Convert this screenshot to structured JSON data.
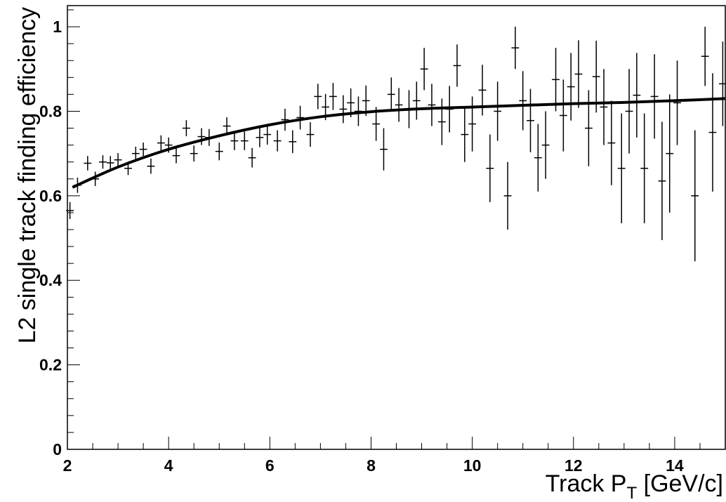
{
  "chart_data": {
    "type": "scatter",
    "title": "",
    "xlabel": "Track P",
    "xlabel_sub": "T",
    "xlabel_unit": " [GeV/c]",
    "ylabel": "L2 single track finding efficiency",
    "xlim": [
      2,
      15
    ],
    "ylim": [
      0,
      1.05
    ],
    "x_ticks": [
      2,
      4,
      6,
      8,
      10,
      12,
      14
    ],
    "x_tick_labels": [
      "2",
      "4",
      "6",
      "8",
      "10",
      "12",
      "14"
    ],
    "y_ticks": [
      0,
      0.2,
      0.4,
      0.6,
      0.8,
      1
    ],
    "y_tick_labels": [
      "0",
      "0.2",
      "0.4",
      "0.6",
      "0.8",
      "1"
    ],
    "grid": false,
    "bin_width": 0.15,
    "series": [
      {
        "points": [
          [
            2.05,
            0.565,
            0.02
          ],
          [
            2.2,
            0.625,
            0.018
          ],
          [
            2.4,
            0.677,
            0.017
          ],
          [
            2.55,
            0.64,
            0.017
          ],
          [
            2.7,
            0.68,
            0.016
          ],
          [
            2.85,
            0.678,
            0.016
          ],
          [
            3.0,
            0.685,
            0.016
          ],
          [
            3.2,
            0.665,
            0.016
          ],
          [
            3.35,
            0.7,
            0.016
          ],
          [
            3.5,
            0.71,
            0.016
          ],
          [
            3.65,
            0.67,
            0.018
          ],
          [
            3.85,
            0.725,
            0.018
          ],
          [
            4.0,
            0.72,
            0.018
          ],
          [
            4.15,
            0.695,
            0.018
          ],
          [
            4.35,
            0.76,
            0.019
          ],
          [
            4.5,
            0.7,
            0.019
          ],
          [
            4.65,
            0.74,
            0.02
          ],
          [
            4.8,
            0.738,
            0.02
          ],
          [
            5.0,
            0.705,
            0.021
          ],
          [
            5.15,
            0.765,
            0.021
          ],
          [
            5.3,
            0.73,
            0.022
          ],
          [
            5.5,
            0.73,
            0.022
          ],
          [
            5.65,
            0.69,
            0.023
          ],
          [
            5.8,
            0.738,
            0.023
          ],
          [
            5.95,
            0.745,
            0.024
          ],
          [
            6.15,
            0.73,
            0.025
          ],
          [
            6.3,
            0.78,
            0.026
          ],
          [
            6.45,
            0.728,
            0.027
          ],
          [
            6.6,
            0.785,
            0.028
          ],
          [
            6.8,
            0.745,
            0.029
          ],
          [
            6.95,
            0.835,
            0.03
          ],
          [
            7.1,
            0.81,
            0.031
          ],
          [
            7.25,
            0.835,
            0.032
          ],
          [
            7.45,
            0.805,
            0.033
          ],
          [
            7.6,
            0.82,
            0.034
          ],
          [
            7.75,
            0.8,
            0.035
          ],
          [
            7.9,
            0.825,
            0.036
          ],
          [
            8.1,
            0.77,
            0.04
          ],
          [
            8.25,
            0.71,
            0.05
          ],
          [
            8.4,
            0.84,
            0.04
          ],
          [
            8.55,
            0.815,
            0.04
          ],
          [
            8.75,
            0.805,
            0.045
          ],
          [
            8.9,
            0.825,
            0.045
          ],
          [
            9.05,
            0.9,
            0.05
          ],
          [
            9.2,
            0.815,
            0.05
          ],
          [
            9.4,
            0.775,
            0.055
          ],
          [
            9.55,
            0.805,
            0.055
          ],
          [
            9.7,
            0.908,
            0.05
          ],
          [
            9.85,
            0.745,
            0.065
          ],
          [
            10.0,
            0.77,
            0.065
          ],
          [
            10.2,
            0.85,
            0.06
          ],
          [
            10.35,
            0.665,
            0.08
          ],
          [
            10.5,
            0.8,
            0.07
          ],
          [
            10.7,
            0.6,
            0.08
          ],
          [
            10.85,
            0.95,
            0.05
          ],
          [
            11.0,
            0.825,
            0.07
          ],
          [
            11.15,
            0.778,
            0.075
          ],
          [
            11.3,
            0.69,
            0.08
          ],
          [
            11.45,
            0.72,
            0.08
          ],
          [
            11.65,
            0.875,
            0.075
          ],
          [
            11.8,
            0.79,
            0.085
          ],
          [
            11.95,
            0.858,
            0.08
          ],
          [
            12.1,
            0.888,
            0.08
          ],
          [
            12.3,
            0.76,
            0.09
          ],
          [
            12.45,
            0.882,
            0.085
          ],
          [
            12.6,
            0.81,
            0.09
          ],
          [
            12.75,
            0.725,
            0.1
          ],
          [
            12.95,
            0.665,
            0.13
          ],
          [
            13.1,
            0.8,
            0.1
          ],
          [
            13.25,
            0.838,
            0.1
          ],
          [
            13.4,
            0.665,
            0.13
          ],
          [
            13.6,
            0.835,
            0.1
          ],
          [
            13.75,
            0.635,
            0.14
          ],
          [
            13.9,
            0.7,
            0.14
          ],
          [
            14.05,
            0.82,
            0.1
          ],
          [
            14.4,
            0.6,
            0.155
          ],
          [
            14.6,
            0.93,
            0.07
          ],
          [
            14.75,
            0.75,
            0.14
          ],
          [
            14.95,
            0.865,
            0.1
          ]
        ]
      }
    ],
    "fit": {
      "x": [
        2.1,
        3,
        4,
        5,
        6,
        7,
        8,
        9,
        10,
        11,
        12,
        13,
        14,
        15
      ],
      "y": [
        0.62,
        0.668,
        0.71,
        0.742,
        0.768,
        0.787,
        0.799,
        0.806,
        0.81,
        0.814,
        0.818,
        0.821,
        0.825,
        0.83
      ]
    }
  }
}
